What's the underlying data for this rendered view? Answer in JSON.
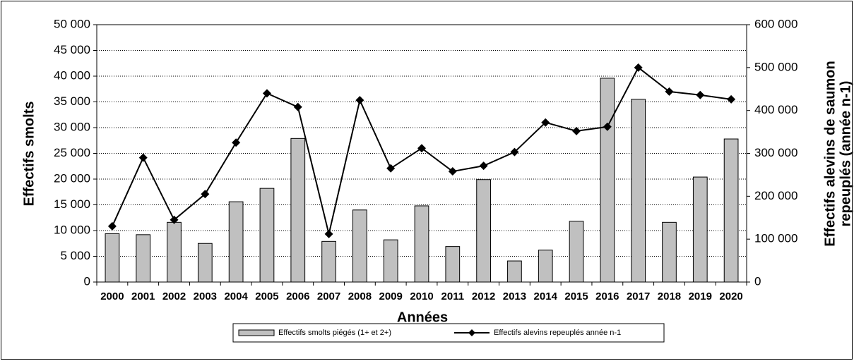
{
  "chart_data": {
    "type": "bar",
    "categories": [
      "2000",
      "2001",
      "2002",
      "2003",
      "2004",
      "2005",
      "2006",
      "2007",
      "2008",
      "2009",
      "2010",
      "2011",
      "2012",
      "2013",
      "2014",
      "2015",
      "2016",
      "2017",
      "2018",
      "2019",
      "2020"
    ],
    "x_label": "Années",
    "y_label": "Effectifs smolts",
    "y2_label": [
      "Effectifs alevins de saumon",
      "repeuplés (année n-1)"
    ],
    "ylim": [
      0,
      50000
    ],
    "yticks": [
      0,
      {
        "value": 5000,
        "label": "5 000"
      },
      {
        "value": 10000,
        "label": "10 000"
      },
      {
        "value": 15000,
        "label": "15 000"
      },
      {
        "value": 20000,
        "label": "20 000"
      },
      {
        "value": 25000,
        "label": "25 000"
      },
      {
        "value": 30000,
        "label": "30 000"
      },
      {
        "value": 35000,
        "label": "35 000"
      },
      {
        "value": 40000,
        "label": "40 000"
      },
      {
        "value": 45000,
        "label": "45 000"
      },
      {
        "value": 50000,
        "label": "50 000"
      }
    ],
    "y2lim": [
      0,
      600000
    ],
    "y2ticks": [
      0,
      {
        "value": 100000,
        "label": "100 000"
      },
      {
        "value": 200000,
        "label": "200 000"
      },
      {
        "value": 300000,
        "label": "300 000"
      },
      {
        "value": 400000,
        "label": "400 000"
      },
      {
        "value": 500000,
        "label": "500 000"
      },
      {
        "value": 600000,
        "label": "600 000"
      }
    ],
    "grid": true,
    "legend": "bottom",
    "series": [
      {
        "name": "Effectifs smolts piégés (1+ et 2+)",
        "type": "bar",
        "color": "#c0c0c0",
        "values": [
          9400,
          9200,
          11600,
          7500,
          15600,
          18200,
          27900,
          7900,
          14000,
          8200,
          14800,
          6900,
          19900,
          4100,
          6200,
          11800,
          39600,
          35500,
          11600,
          20400,
          27800
        ]
      },
      {
        "name": "Effectifs alevins repeuplés année n-1",
        "type": "line",
        "axis": "y2",
        "color": "#000000",
        "values": [
          130000,
          290000,
          145000,
          205000,
          325000,
          440000,
          408000,
          112000,
          424000,
          265000,
          312000,
          258000,
          271000,
          303000,
          372000,
          352000,
          362000,
          500000,
          444000,
          436000,
          426000
        ]
      }
    ]
  }
}
